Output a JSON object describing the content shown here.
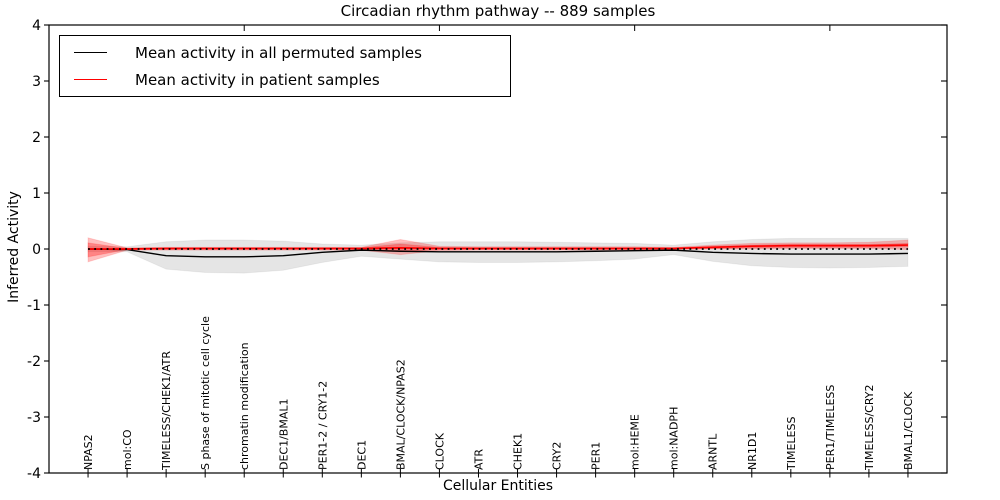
{
  "chart_data": {
    "type": "line",
    "title": "Circadian rhythm pathway -- 889 samples",
    "xlabel": "Cellular Entities",
    "ylabel": "Inferred Activity",
    "ylim": [
      -4,
      4
    ],
    "y_ticks": [
      "4",
      "3",
      "2",
      "1",
      "0",
      "-1",
      "-2",
      "-3",
      "-4"
    ],
    "y_tick_values": [
      4,
      3,
      2,
      1,
      0,
      -1,
      -2,
      -3,
      -4
    ],
    "x_axis_unit_ticks": [
      5,
      10,
      15,
      20
    ],
    "grid": false,
    "legend_position": "upper-left",
    "categories": [
      "NPAS2",
      "mol:CO",
      "TIMELESS/CHEK1/ATR",
      "S phase of mitotic cell cycle",
      "chromatin modification",
      "DEC1/BMAL1",
      "PER1-2 / CRY1-2",
      "DEC1",
      "BMAL/CLOCK/NPAS2",
      "CLOCK",
      "ATR",
      "CHEK1",
      "CRY2",
      "PER1",
      "mol:HEME",
      "mol:NADPH",
      "ARNTL",
      "NR1D1",
      "TIMELESS",
      "PER1/TIMELESS",
      "TIMELESS/CRY2",
      "BMAL1/CLOCK"
    ],
    "series": [
      {
        "name": "Mean activity in all permuted samples",
        "color": "#000000",
        "style": "solid",
        "values": [
          0.0,
          -0.01,
          -0.12,
          -0.14,
          -0.14,
          -0.12,
          -0.06,
          -0.02,
          -0.04,
          -0.05,
          -0.05,
          -0.05,
          -0.05,
          -0.04,
          -0.03,
          -0.02,
          -0.06,
          -0.08,
          -0.09,
          -0.09,
          -0.09,
          -0.08
        ]
      },
      {
        "name": "Mean activity in patient samples",
        "color": "#ff0000",
        "style": "solid",
        "values": [
          0.0,
          0.0,
          0.01,
          0.01,
          0.01,
          0.01,
          0.01,
          0.01,
          0.02,
          0.01,
          0.01,
          0.01,
          0.01,
          0.01,
          0.01,
          0.01,
          0.03,
          0.05,
          0.06,
          0.06,
          0.06,
          0.07
        ]
      }
    ],
    "zero_reference_line": {
      "value": 0,
      "color": "#000000",
      "style": "dotted"
    },
    "bands": {
      "permuted": {
        "color": "#000000",
        "opacity": 0.1,
        "upper": [
          0.05,
          0.04,
          0.13,
          0.16,
          0.16,
          0.14,
          0.09,
          0.07,
          0.11,
          0.13,
          0.13,
          0.13,
          0.12,
          0.11,
          0.1,
          0.07,
          0.13,
          0.17,
          0.19,
          0.19,
          0.19,
          0.19
        ],
        "lower": [
          -0.05,
          -0.05,
          -0.36,
          -0.42,
          -0.43,
          -0.38,
          -0.24,
          -0.13,
          -0.18,
          -0.23,
          -0.24,
          -0.24,
          -0.23,
          -0.21,
          -0.18,
          -0.1,
          -0.22,
          -0.3,
          -0.33,
          -0.34,
          -0.33,
          -0.31
        ]
      },
      "patient_outer": {
        "color": "#ff0000",
        "opacity": 0.25,
        "upper": [
          0.2,
          0.02,
          0.03,
          0.03,
          0.03,
          0.03,
          0.03,
          0.03,
          0.17,
          0.05,
          0.04,
          0.04,
          0.04,
          0.04,
          0.04,
          0.03,
          0.07,
          0.1,
          0.11,
          0.11,
          0.12,
          0.16
        ],
        "lower": [
          -0.23,
          -0.02,
          -0.02,
          -0.02,
          -0.02,
          -0.02,
          -0.02,
          -0.02,
          -0.1,
          -0.03,
          -0.02,
          -0.02,
          -0.02,
          -0.02,
          -0.02,
          -0.01,
          0.0,
          0.0,
          0.01,
          0.01,
          0.01,
          -0.01
        ]
      },
      "patient_inner": {
        "color": "#ff0000",
        "opacity": 0.3,
        "upper": [
          0.11,
          0.01,
          0.02,
          0.02,
          0.02,
          0.02,
          0.02,
          0.02,
          0.09,
          0.03,
          0.02,
          0.02,
          0.02,
          0.02,
          0.02,
          0.02,
          0.05,
          0.07,
          0.08,
          0.08,
          0.08,
          0.1
        ],
        "lower": [
          -0.14,
          -0.01,
          -0.01,
          -0.01,
          -0.01,
          -0.01,
          -0.01,
          -0.01,
          -0.05,
          -0.01,
          -0.01,
          -0.01,
          -0.01,
          -0.01,
          -0.01,
          0.0,
          0.01,
          0.02,
          0.03,
          0.03,
          0.03,
          0.04
        ]
      }
    }
  }
}
